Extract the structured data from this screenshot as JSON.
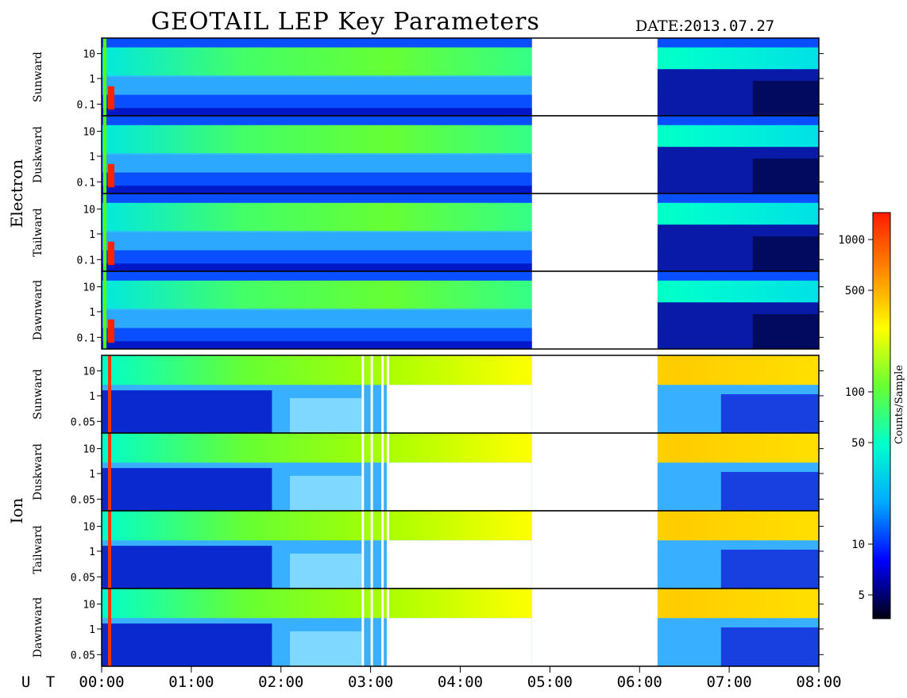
{
  "header": {
    "title": "GEOTAIL LEP Key Parameters",
    "date_label": "DATE:",
    "date_value": "2013.07.27"
  },
  "chart_data": {
    "type": "heatmap",
    "title": "GEOTAIL LEP Key Parameters",
    "x_axis": {
      "label": "U T",
      "range": [
        "00:00",
        "08:00"
      ],
      "ticks": [
        "00:00",
        "01:00",
        "02:00",
        "03:00",
        "04:00",
        "05:00",
        "06:00",
        "07:00",
        "08:00"
      ]
    },
    "data_gaps_ut": [
      [
        "04:48",
        "06:12"
      ]
    ],
    "ion_partial_gap_ut": [
      "03:12",
      "04:48"
    ],
    "groups": [
      {
        "name": "Electron",
        "panels": [
          "Sunward",
          "Duskward",
          "Tailward",
          "Dawnward"
        ],
        "y_scale": "log",
        "y_ticks": [
          "10",
          "1",
          "0.1"
        ]
      },
      {
        "name": "Ion",
        "panels": [
          "Sunward",
          "Duskward",
          "Tailward",
          "Dawnward"
        ],
        "y_scale": "log",
        "y_ticks": [
          "10",
          "1",
          "0.05"
        ]
      }
    ],
    "colorbar": {
      "label": "Counts/Sample",
      "scale": "log",
      "ticks": [
        "1000",
        "500",
        "100",
        "50",
        "10",
        "5"
      ],
      "colors": [
        "#000010",
        "#0000ff",
        "#00aaff",
        "#00ffcc",
        "#66ff33",
        "#ffff00",
        "#ff8800",
        "#ff1a00"
      ]
    }
  }
}
